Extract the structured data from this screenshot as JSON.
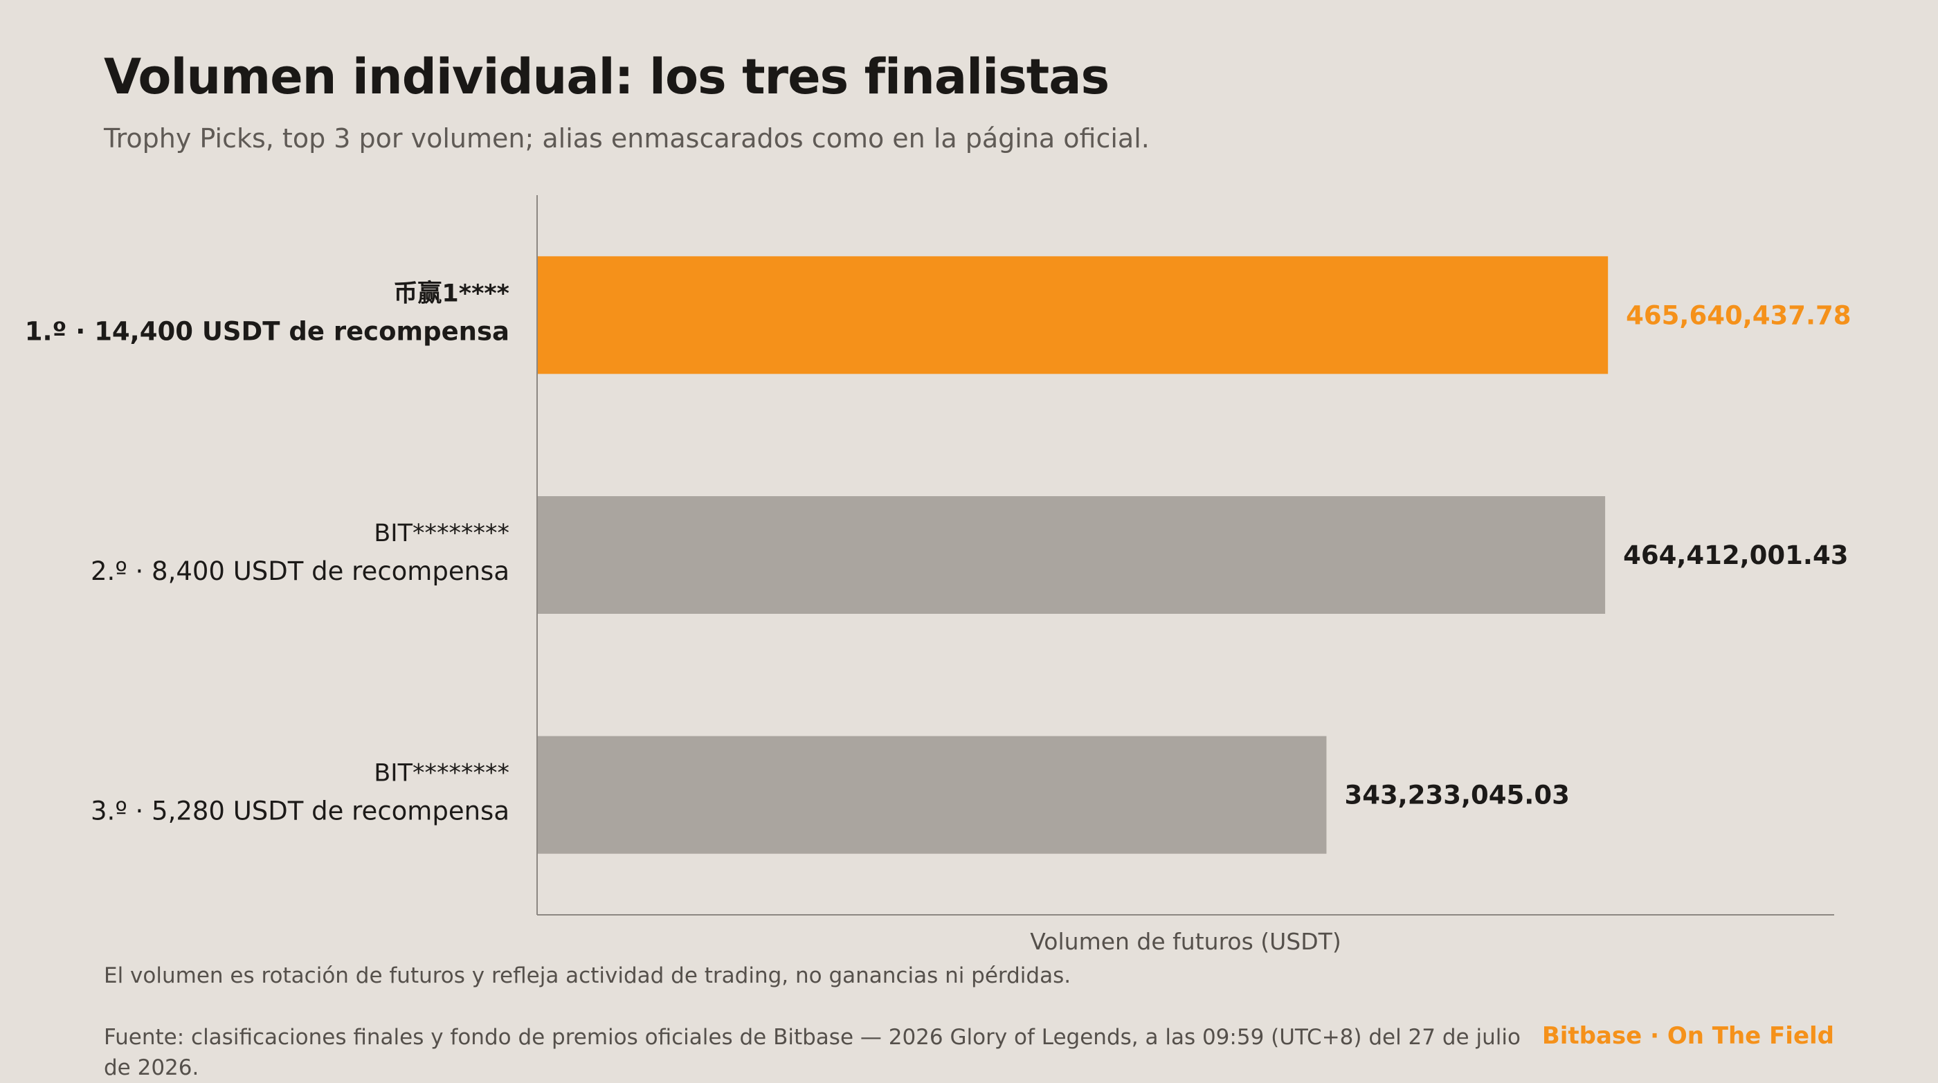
{
  "header": {
    "title": "Volumen individual: los tres finalistas",
    "subtitle": "Trophy Picks, top 3 por volumen; alias enmascarados como en la página oficial."
  },
  "chart_data": {
    "type": "bar",
    "orientation": "horizontal",
    "categories": [
      {
        "alias": "币赢1****",
        "reward": "1.º · 14,400 USDT de recompensa"
      },
      {
        "alias": "BIT********",
        "reward": "2.º · 8,400 USDT de recompensa"
      },
      {
        "alias": "BIT********",
        "reward": "3.º · 5,280 USDT de recompensa"
      }
    ],
    "values": [
      465640437.78,
      464412001.43,
      343233045.03
    ],
    "value_labels": [
      "465,640,437.78",
      "464,412,001.43",
      "343,233,045.03"
    ],
    "xlabel": "Volumen de futuros (USDT)",
    "xlim": [
      0,
      564000000
    ],
    "grid": false,
    "highlight_index": 0,
    "colors": {
      "highlight": "#f5911a",
      "default": "#aaa59f",
      "axis": "#8c8782",
      "text": "#1c1a18"
    }
  },
  "footer": {
    "note": "El volumen es rotación de futuros y refleja actividad de trading, no ganancias ni pérdidas.",
    "source": "Fuente: clasificaciones finales y fondo de premios oficiales de Bitbase — 2026 Glory of Legends, a las 09:59 (UTC+8) del 27 de julio de 2026.",
    "brand": "Bitbase · On The Field"
  }
}
